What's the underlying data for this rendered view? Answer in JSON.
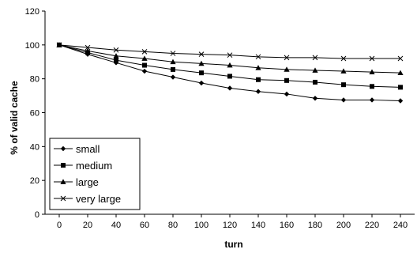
{
  "chart_data": {
    "type": "line",
    "title": "",
    "xlabel": "turn",
    "ylabel": "% of valid cache",
    "x": [
      0,
      20,
      40,
      60,
      80,
      100,
      120,
      140,
      160,
      180,
      200,
      220,
      240
    ],
    "xlim": [
      -10,
      250
    ],
    "ylim": [
      0,
      120
    ],
    "yticks": [
      0,
      20,
      40,
      60,
      80,
      100,
      120
    ],
    "grid": false,
    "legend_position": "bottom-left",
    "series": [
      {
        "name": "small",
        "marker": "diamond",
        "values": [
          100,
          94.5,
          89.5,
          84.5,
          81,
          77.5,
          74.5,
          72.5,
          71,
          68.5,
          67.5,
          67.5,
          67
        ]
      },
      {
        "name": "medium",
        "marker": "square",
        "values": [
          100,
          95.5,
          91,
          88,
          85.5,
          83.5,
          81.5,
          79.5,
          79,
          78,
          76.5,
          75.5,
          75
        ]
      },
      {
        "name": "large",
        "marker": "triangle",
        "values": [
          100,
          96.5,
          93.5,
          92,
          90,
          89,
          88,
          86.5,
          85.5,
          85,
          84.5,
          84,
          83.5
        ]
      },
      {
        "name": "very large",
        "marker": "x",
        "values": [
          100,
          98.5,
          97,
          96,
          95,
          94.5,
          94,
          93,
          92.5,
          92.5,
          92,
          92,
          92
        ]
      }
    ]
  }
}
